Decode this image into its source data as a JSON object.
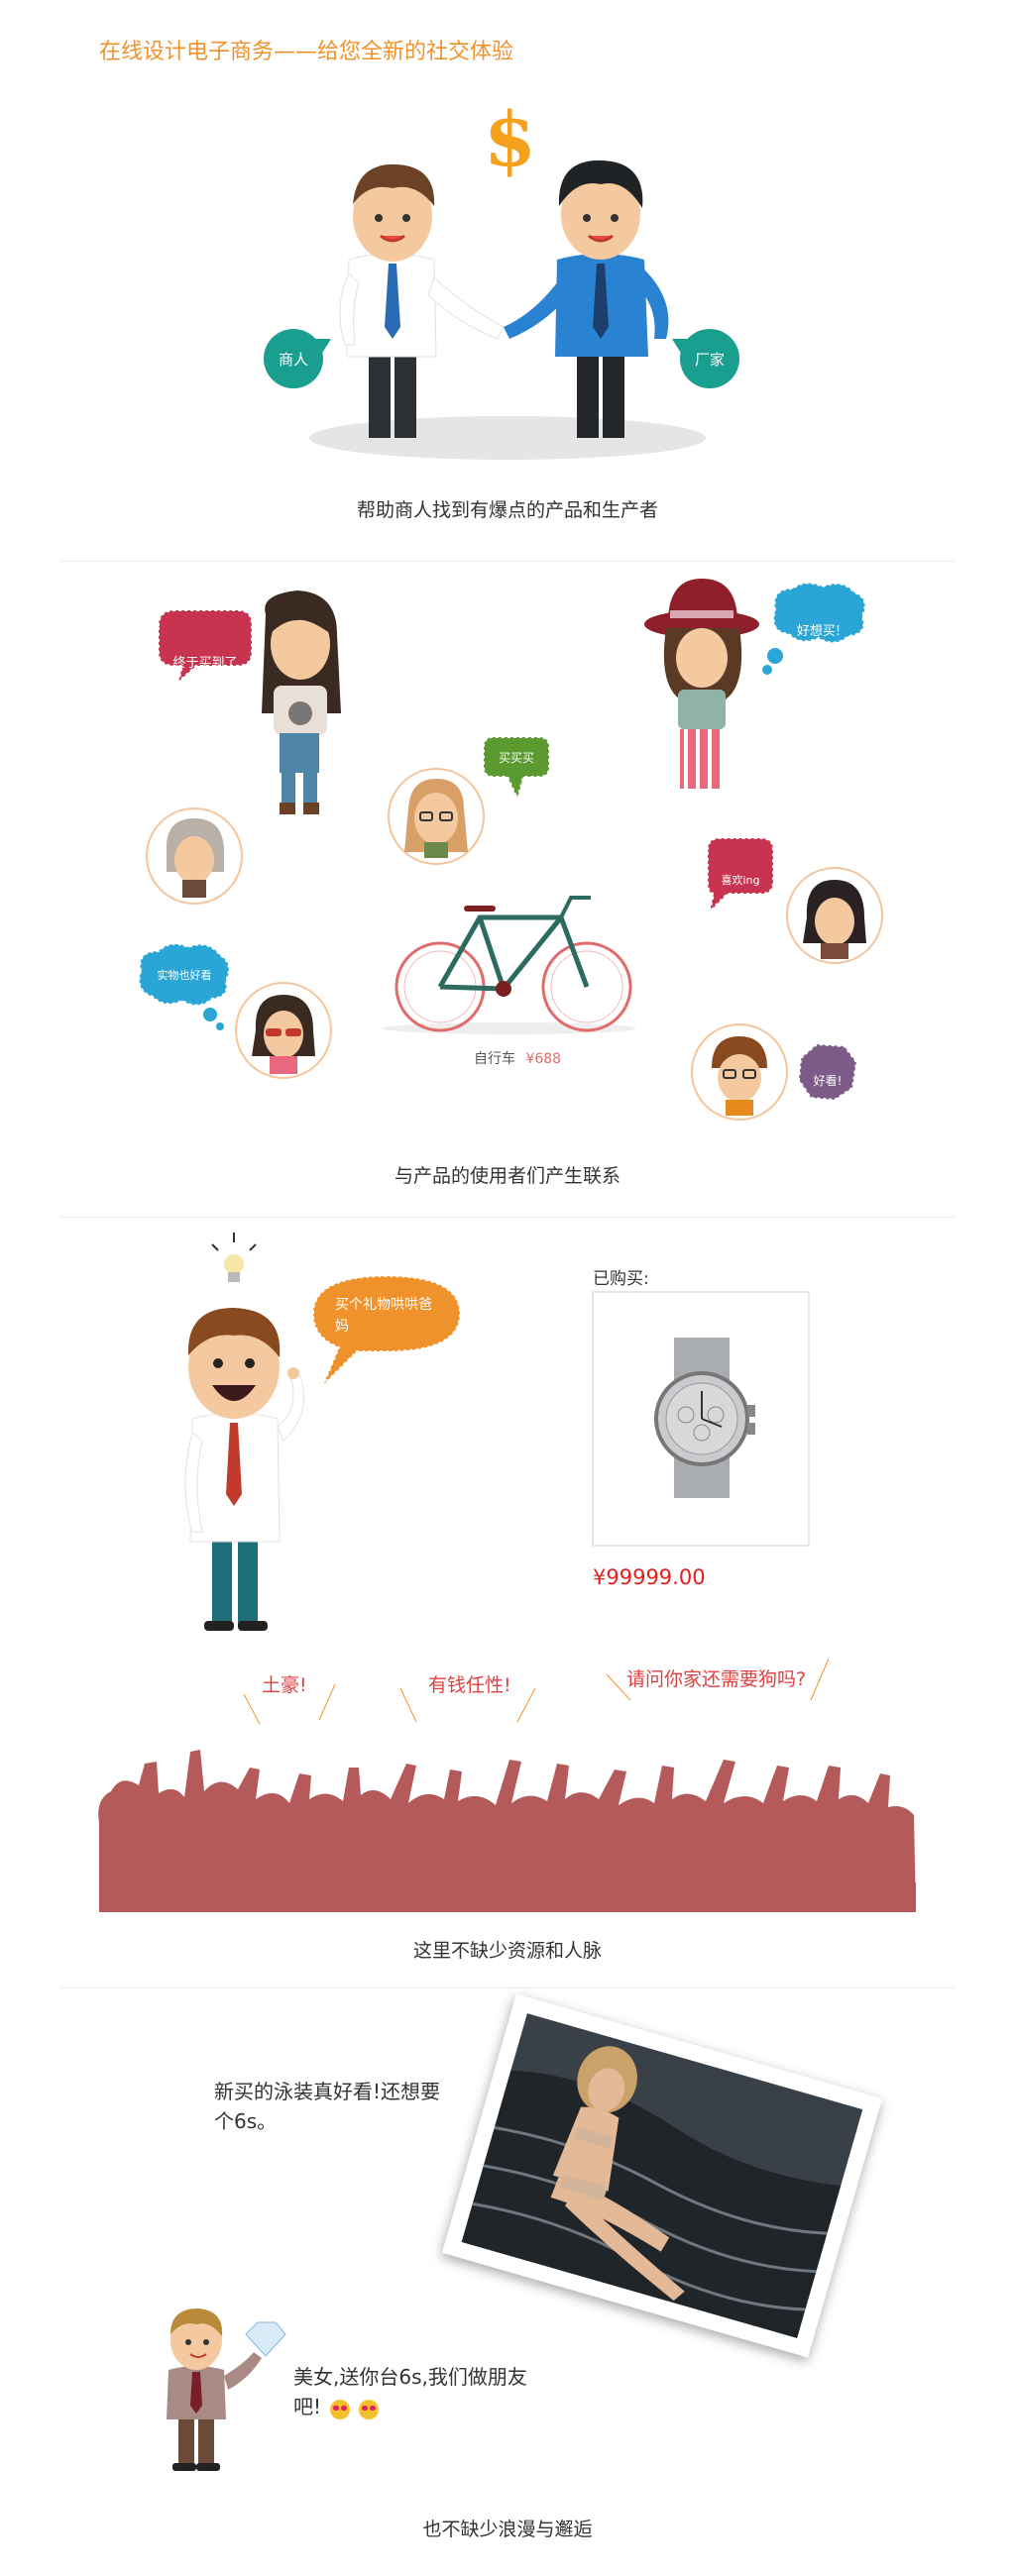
{
  "header": {
    "title": "在线设计电子商务——给您全新的社交体验"
  },
  "section1": {
    "dollar": "$",
    "merchant_label": "商人",
    "factory_label": "厂家",
    "caption": "帮助商人找到有爆点的产品和生产者"
  },
  "section2": {
    "bubbles": [
      "终于买到了",
      "好想买!",
      "买买买",
      "喜欢ing",
      "实物也好看",
      "好看!"
    ],
    "product_name": "自行车",
    "product_price": "¥688",
    "caption": "与产品的使用者们产生联系"
  },
  "section3": {
    "speech": "买个礼物哄哄爸妈",
    "purchased_label": "已购买:",
    "price": "¥99999.00",
    "shouts": [
      "土豪!",
      "有钱任性!",
      "请问你家还需要狗吗?"
    ],
    "caption": "这里不缺少资源和人脉"
  },
  "section4": {
    "girl_text": "新买的泳装真好看!还想要个6s。",
    "boy_text": "美女,送你台6s,我们做朋友吧!",
    "caption": "也不缺少浪漫与邂逅"
  },
  "colors": {
    "orange": "#f0922b",
    "teal": "#1a9e8f",
    "crowd": "#b55a5a",
    "price_red": "#e41d1d",
    "pink": "#c8334f",
    "sky": "#2aa6d6",
    "green": "#5a9a2e",
    "purple": "#7d5b88"
  }
}
